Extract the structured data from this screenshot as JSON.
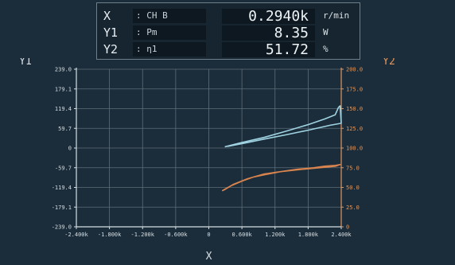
{
  "readouts": [
    {
      "key": "X",
      "source": ": CH B",
      "value": "0.2940k",
      "unit": "r/min"
    },
    {
      "key": "Y1",
      "source": ": Pm",
      "value": "8.35",
      "unit": "W"
    },
    {
      "key": "Y2",
      "source": ": η1",
      "value": "51.72",
      "unit": "%"
    }
  ],
  "colors": {
    "background": "#1b2d3a",
    "grid": "#5e6e79",
    "axis_left": "#d7dee3",
    "axis_right": "#e0965e",
    "series_y1": "#9fd3e2",
    "series_y2": "#d9844f"
  },
  "chart_data": {
    "type": "line",
    "xlabel": "X",
    "y1label": "Y1",
    "y2label": "Y2",
    "xlim": [
      -2400,
      2400
    ],
    "y1lim": [
      -239,
      239
    ],
    "y2lim": [
      0,
      200
    ],
    "x_ticks": [
      "-2.400k",
      "-1.800k",
      "-1.200k",
      "-0.600k",
      "0",
      "0.600k",
      "1.200k",
      "1.800k",
      "2.400k"
    ],
    "y1_ticks": [
      "239.0",
      "179.1",
      "119.4",
      "59.7",
      "0",
      "-59.7",
      "-119.4",
      "-179.1",
      "-239.0"
    ],
    "y2_ticks": [
      "200.0",
      "175.0",
      "150.0",
      "125.0",
      "100.0",
      "75.0",
      "50.0",
      "25.0",
      "0"
    ],
    "series": [
      {
        "name": "Pm",
        "axis": "y1",
        "points": [
          [
            300,
            4
          ],
          [
            600,
            17
          ],
          [
            1000,
            32
          ],
          [
            1400,
            51
          ],
          [
            1800,
            71
          ],
          [
            2100,
            88
          ],
          [
            2290,
            101
          ],
          [
            2350,
            123
          ],
          [
            2380,
            128
          ],
          [
            2400,
            75
          ],
          [
            2200,
            69
          ],
          [
            1800,
            54
          ],
          [
            1400,
            40
          ],
          [
            1000,
            27
          ],
          [
            650,
            15
          ],
          [
            350,
            5
          ]
        ]
      },
      {
        "name": "η1",
        "axis": "y2",
        "points": [
          [
            250,
            46
          ],
          [
            400,
            52
          ],
          [
            600,
            58
          ],
          [
            800,
            63
          ],
          [
            1000,
            66
          ],
          [
            1300,
            70
          ],
          [
            1600,
            73
          ],
          [
            1900,
            75
          ],
          [
            2100,
            77
          ],
          [
            2300,
            78
          ],
          [
            2380,
            79
          ],
          [
            2300,
            77
          ],
          [
            2000,
            75
          ],
          [
            1700,
            73
          ],
          [
            1300,
            70
          ],
          [
            1000,
            67
          ],
          [
            700,
            61
          ],
          [
            450,
            54
          ],
          [
            280,
            47
          ]
        ]
      }
    ]
  }
}
